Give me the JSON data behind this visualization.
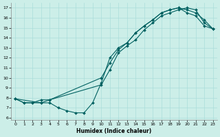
{
  "xlabel": "Humidex (Indice chaleur)",
  "bg_color": "#cceee8",
  "line_color": "#006060",
  "xlim": [
    -0.5,
    23.5
  ],
  "ylim": [
    5.8,
    17.5
  ],
  "xticks": [
    0,
    1,
    2,
    3,
    4,
    5,
    6,
    7,
    8,
    9,
    10,
    11,
    12,
    13,
    14,
    15,
    16,
    17,
    18,
    19,
    20,
    21,
    22,
    23
  ],
  "yticks": [
    6,
    7,
    8,
    9,
    10,
    11,
    12,
    13,
    14,
    15,
    16,
    17
  ],
  "grid_color": "#aaddda",
  "line1_x": [
    0,
    1,
    2,
    3,
    4,
    5,
    6,
    7,
    8,
    9,
    10,
    11,
    12,
    13,
    14,
    15,
    16,
    17,
    18,
    19,
    20,
    21,
    22,
    23
  ],
  "line1_y": [
    7.9,
    7.5,
    7.5,
    7.5,
    7.5,
    7.0,
    6.7,
    6.5,
    6.5,
    7.5,
    9.5,
    12.0,
    13.0,
    13.5,
    14.5,
    15.2,
    15.8,
    16.5,
    16.8,
    17.0,
    16.5,
    16.2,
    15.2,
    14.9
  ],
  "line2_x": [
    0,
    1,
    2,
    3,
    4,
    10,
    11,
    12,
    13,
    14,
    15,
    16,
    17,
    18,
    19,
    20,
    21,
    22,
    23
  ],
  "line2_y": [
    7.9,
    7.5,
    7.5,
    7.8,
    7.8,
    10.0,
    11.5,
    12.8,
    13.5,
    14.5,
    15.2,
    15.8,
    16.5,
    16.8,
    17.0,
    16.8,
    16.5,
    15.8,
    14.9
  ],
  "line3_x": [
    0,
    3,
    4,
    10,
    11,
    12,
    13,
    14,
    15,
    16,
    17,
    18,
    19,
    20,
    21,
    22,
    23
  ],
  "line3_y": [
    7.9,
    7.5,
    7.8,
    9.3,
    10.8,
    12.5,
    13.2,
    13.8,
    14.8,
    15.5,
    16.2,
    16.5,
    16.8,
    17.0,
    16.8,
    15.5,
    14.9
  ]
}
